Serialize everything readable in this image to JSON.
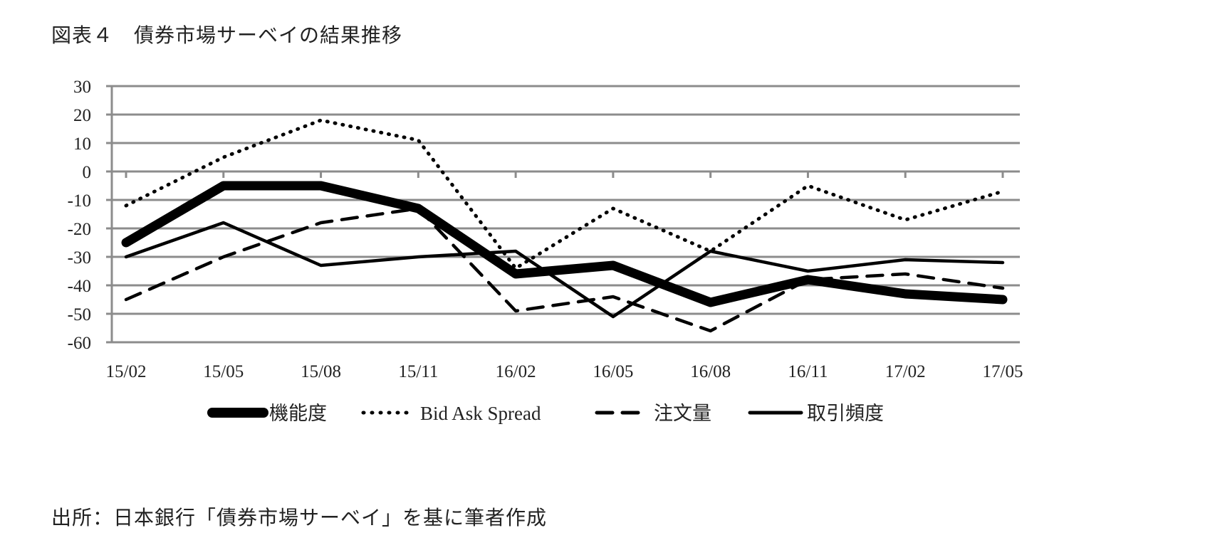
{
  "figure": {
    "title": "図表４　債券市場サーベイの結果推移",
    "source": "出所：日本銀行「債券市場サーベイ」を基に筆者作成"
  },
  "chart_data": {
    "type": "line",
    "title": "図表４　債券市場サーベイの結果推移",
    "xlabel": "",
    "ylabel": "",
    "categories": [
      "15/02",
      "15/05",
      "15/08",
      "15/11",
      "16/02",
      "16/05",
      "16/08",
      "16/11",
      "17/02",
      "17/05"
    ],
    "ylim": [
      -60,
      30
    ],
    "yticks": [
      30,
      20,
      10,
      0,
      -10,
      -20,
      -30,
      -40,
      -50,
      -60
    ],
    "grid": true,
    "legend_position": "bottom",
    "series": [
      {
        "name": "機能度",
        "style": "solid-thick",
        "color": "#000000",
        "values": [
          -25,
          -5,
          -5,
          -13,
          -36,
          -33,
          -46,
          -38,
          -43,
          -45
        ]
      },
      {
        "name": "Bid Ask Spread",
        "style": "dotted",
        "color": "#000000",
        "values": [
          -12,
          5,
          18,
          11,
          -34,
          -13,
          -28,
          -5,
          -17,
          -7
        ]
      },
      {
        "name": "注文量",
        "style": "dashed",
        "color": "#000000",
        "values": [
          -45,
          -30,
          -18,
          -13,
          -49,
          -44,
          -56,
          -38,
          -36,
          -41
        ]
      },
      {
        "name": "取引頻度",
        "style": "solid",
        "color": "#000000",
        "values": [
          -30,
          -18,
          -33,
          -30,
          -28,
          -51,
          -28,
          -35,
          -31,
          -32
        ]
      }
    ]
  }
}
